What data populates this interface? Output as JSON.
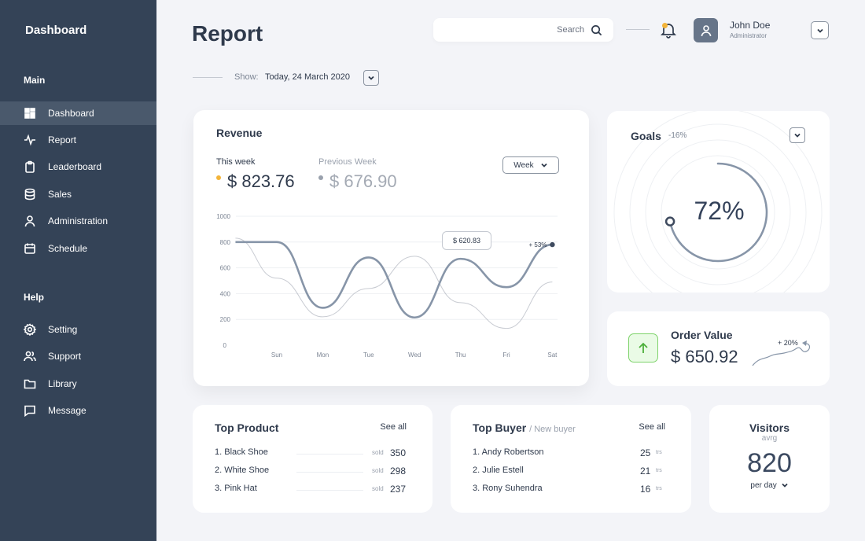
{
  "sidebar": {
    "brand": "Dashboard",
    "sections": {
      "main": "Main",
      "help": "Help"
    },
    "main_items": [
      {
        "label": "Dashboard",
        "icon": "grid-icon"
      },
      {
        "label": "Report",
        "icon": "activity-icon"
      },
      {
        "label": "Leaderboard",
        "icon": "clipboard-icon"
      },
      {
        "label": "Sales",
        "icon": "database-icon"
      },
      {
        "label": "Administration",
        "icon": "user-icon"
      },
      {
        "label": "Schedule",
        "icon": "calendar-icon"
      }
    ],
    "help_items": [
      {
        "label": "Setting",
        "icon": "gear-icon"
      },
      {
        "label": "Support",
        "icon": "users-icon"
      },
      {
        "label": "Library",
        "icon": "folder-icon"
      },
      {
        "label": "Message",
        "icon": "message-icon"
      }
    ]
  },
  "header": {
    "title": "Report",
    "search_placeholder": "Search",
    "user_name": "John Doe",
    "user_role": "Administrator",
    "show_label": "Show:",
    "show_value": "Today, 24 March 2020"
  },
  "revenue": {
    "title": "Revenue",
    "this_week_label": "This week",
    "this_week_value": "$ 823.76",
    "prev_week_label": "Previous Week",
    "prev_week_value": "$ 676.90",
    "period": "Week",
    "tooltip": "$ 620.83",
    "end_delta": "+ 53%"
  },
  "chart_data": {
    "type": "line",
    "title": "Revenue",
    "categories": [
      "Sun",
      "Mon",
      "Tue",
      "Wed",
      "Thu",
      "Fri",
      "Sat"
    ],
    "yticks": [
      "0",
      "200",
      "400",
      "600",
      "800",
      "1000"
    ],
    "ylim": [
      0,
      1000
    ],
    "series": [
      {
        "name": "This week",
        "x": [
          -0.9,
          0,
          1,
          2,
          3,
          4,
          5,
          6
        ],
        "values": [
          800,
          800,
          290,
          680,
          215,
          670,
          450,
          780
        ]
      },
      {
        "name": "Previous Week",
        "x": [
          -0.9,
          0,
          1,
          2,
          3,
          4,
          5,
          6
        ],
        "values": [
          830,
          520,
          220,
          440,
          690,
          330,
          130,
          490
        ]
      }
    ],
    "tooltip_value": "$ 620.83",
    "annotation": "+ 53%"
  },
  "goals": {
    "title": "Goals",
    "delta": "-16%",
    "percent_label": "72%",
    "percent": 72
  },
  "order_value": {
    "title": "Order Value",
    "value": "$ 650.92",
    "delta": "+ 20%"
  },
  "top_product": {
    "title": "Top Product",
    "see_all": "See all",
    "sold_label": "sold",
    "rows": [
      {
        "name": "1. Black Shoe",
        "sold": "350"
      },
      {
        "name": "2. White Shoe",
        "sold": "298"
      },
      {
        "name": "3. Pink Hat",
        "sold": "237"
      }
    ]
  },
  "top_buyer": {
    "title": "Top Buyer",
    "subtitle": "/ New buyer",
    "see_all": "See all",
    "unit": "trs",
    "rows": [
      {
        "name": "1. Andy Robertson",
        "count": "25"
      },
      {
        "name": "2. Julie Estell",
        "count": "21"
      },
      {
        "name": "3. Rony Suhendra",
        "count": "16"
      }
    ]
  },
  "visitors": {
    "title": "Visitors",
    "subtitle": "avrg",
    "value": "820",
    "period": "per day"
  }
}
